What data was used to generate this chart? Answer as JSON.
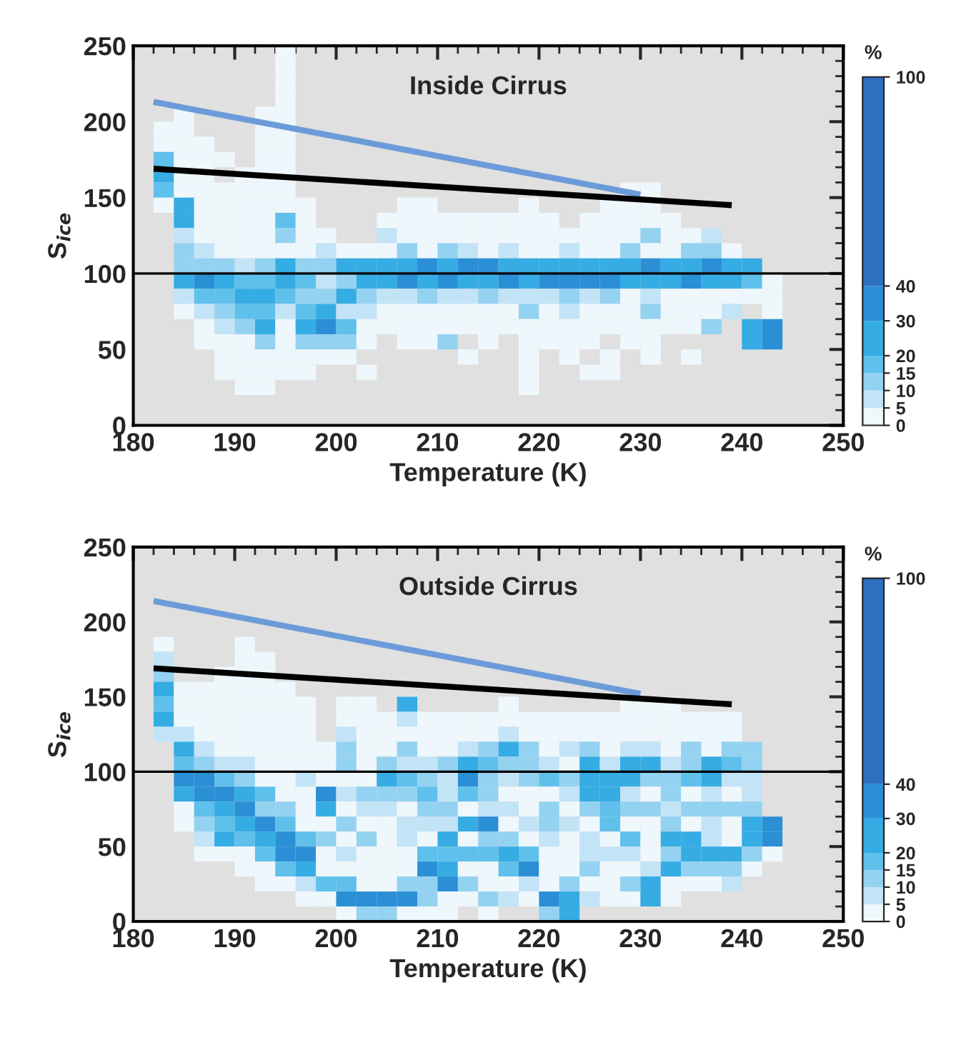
{
  "chart_data": [
    {
      "type": "heatmap",
      "title": "Inside Cirrus",
      "xlabel": "Temperature (K)",
      "ylabel": "S$_{ice}$",
      "clabel": "%",
      "xlim": [
        180,
        250
      ],
      "xticks": [
        180,
        190,
        200,
        210,
        220,
        230,
        240,
        250
      ],
      "ylim": [
        0,
        250
      ],
      "yticks": [
        0,
        50,
        100,
        150,
        200,
        250
      ],
      "clim": [
        0,
        100
      ],
      "cticks": [
        0,
        5,
        10,
        15,
        20,
        30,
        40,
        100
      ],
      "colors": [
        "#eef7fc",
        "#c3e4f7",
        "#94d2f1",
        "#5fc0ec",
        "#35ace3",
        "#2b8fd6",
        "#2e6fc0"
      ],
      "x": [
        183,
        185,
        187,
        189,
        191,
        193,
        195,
        197,
        199,
        201,
        203,
        205,
        207,
        209,
        211,
        213,
        215,
        217,
        219,
        221,
        223,
        225,
        227,
        229,
        231,
        233,
        235,
        237,
        239,
        241,
        243
      ],
      "cells": [
        [
          null,
          null,
          null,
          null,
          null,
          null,
          2,
          null,
          null,
          null,
          null,
          null,
          null,
          null,
          null,
          null,
          null,
          null,
          null,
          null,
          null,
          null,
          null,
          null,
          null,
          null,
          null,
          null,
          null,
          null,
          null
        ],
        [
          null,
          null,
          null,
          null,
          null,
          null,
          2,
          null,
          null,
          null,
          null,
          null,
          null,
          null,
          null,
          null,
          null,
          null,
          null,
          null,
          null,
          null,
          null,
          null,
          null,
          null,
          null,
          null,
          null,
          null,
          null
        ],
        [
          null,
          null,
          null,
          null,
          null,
          null,
          2,
          null,
          null,
          null,
          null,
          null,
          null,
          null,
          null,
          null,
          null,
          null,
          null,
          null,
          null,
          null,
          null,
          null,
          null,
          null,
          null,
          null,
          null,
          null,
          null
        ],
        [
          null,
          null,
          null,
          null,
          null,
          null,
          2,
          null,
          null,
          null,
          null,
          null,
          null,
          null,
          null,
          null,
          null,
          null,
          null,
          null,
          null,
          null,
          null,
          null,
          null,
          null,
          null,
          null,
          null,
          null,
          null
        ],
        [
          null,
          2,
          null,
          null,
          null,
          2,
          2,
          null,
          null,
          null,
          null,
          null,
          null,
          null,
          null,
          null,
          null,
          null,
          null,
          null,
          null,
          null,
          null,
          null,
          null,
          null,
          null,
          null,
          null,
          null,
          null
        ],
        [
          2,
          2,
          null,
          null,
          null,
          2,
          2,
          null,
          null,
          null,
          null,
          null,
          null,
          null,
          null,
          null,
          null,
          null,
          null,
          null,
          null,
          null,
          null,
          null,
          null,
          null,
          null,
          null,
          null,
          null,
          null
        ],
        [
          2,
          2,
          2,
          null,
          null,
          2,
          2,
          null,
          null,
          null,
          null,
          null,
          null,
          null,
          null,
          null,
          null,
          null,
          null,
          null,
          null,
          null,
          null,
          null,
          null,
          null,
          null,
          null,
          null,
          null,
          null
        ],
        [
          17,
          2,
          2,
          2,
          null,
          2,
          2,
          null,
          null,
          null,
          null,
          null,
          null,
          null,
          null,
          null,
          null,
          null,
          null,
          null,
          null,
          null,
          null,
          null,
          null,
          null,
          null,
          null,
          null,
          null,
          null
        ],
        [
          25,
          2,
          2,
          null,
          2,
          2,
          2,
          null,
          null,
          null,
          null,
          null,
          null,
          null,
          null,
          null,
          null,
          null,
          null,
          null,
          null,
          null,
          null,
          null,
          null,
          null,
          null,
          null,
          null,
          null,
          null
        ],
        [
          17,
          2,
          2,
          2,
          2,
          2,
          2,
          null,
          null,
          null,
          null,
          null,
          null,
          null,
          null,
          null,
          null,
          null,
          null,
          null,
          null,
          null,
          null,
          2,
          2,
          null,
          null,
          null,
          null,
          null,
          null
        ],
        [
          2,
          25,
          2,
          2,
          2,
          2,
          2,
          2,
          null,
          null,
          null,
          null,
          2,
          2,
          null,
          null,
          null,
          null,
          2,
          null,
          null,
          null,
          2,
          2,
          2,
          null,
          null,
          null,
          null,
          null,
          null
        ],
        [
          null,
          25,
          2,
          2,
          2,
          2,
          17,
          2,
          null,
          null,
          null,
          2,
          2,
          2,
          2,
          2,
          2,
          2,
          2,
          2,
          null,
          2,
          2,
          2,
          2,
          2,
          null,
          null,
          null,
          null,
          null
        ],
        [
          null,
          7,
          2,
          2,
          2,
          2,
          12,
          2,
          2,
          null,
          null,
          7,
          2,
          2,
          2,
          2,
          2,
          2,
          2,
          2,
          2,
          2,
          2,
          2,
          12,
          2,
          2,
          7,
          null,
          null,
          null
        ],
        [
          null,
          12,
          7,
          2,
          2,
          2,
          2,
          2,
          7,
          2,
          2,
          2,
          12,
          2,
          12,
          7,
          2,
          7,
          2,
          2,
          7,
          2,
          2,
          12,
          2,
          2,
          12,
          12,
          2,
          null,
          null
        ],
        [
          null,
          12,
          12,
          12,
          7,
          12,
          25,
          12,
          12,
          25,
          25,
          25,
          25,
          35,
          25,
          35,
          35,
          25,
          25,
          25,
          25,
          25,
          25,
          25,
          35,
          25,
          25,
          35,
          25,
          25,
          null
        ],
        [
          null,
          25,
          35,
          25,
          17,
          17,
          25,
          17,
          7,
          12,
          25,
          25,
          35,
          25,
          35,
          25,
          25,
          35,
          25,
          35,
          35,
          35,
          35,
          25,
          25,
          25,
          35,
          25,
          25,
          17,
          2
        ],
        [
          null,
          7,
          17,
          17,
          25,
          25,
          17,
          12,
          12,
          25,
          12,
          7,
          7,
          12,
          7,
          7,
          12,
          7,
          7,
          7,
          12,
          7,
          12,
          2,
          7,
          2,
          2,
          2,
          2,
          2,
          2
        ],
        [
          null,
          2,
          7,
          12,
          17,
          17,
          7,
          17,
          25,
          7,
          7,
          2,
          2,
          2,
          2,
          2,
          2,
          2,
          12,
          2,
          7,
          2,
          2,
          2,
          12,
          2,
          2,
          2,
          7,
          null,
          2
        ],
        [
          null,
          null,
          2,
          7,
          12,
          25,
          2,
          25,
          35,
          17,
          2,
          2,
          2,
          2,
          2,
          2,
          2,
          2,
          2,
          2,
          2,
          2,
          2,
          2,
          2,
          2,
          2,
          12,
          null,
          25,
          35
        ],
        [
          null,
          null,
          2,
          2,
          2,
          12,
          2,
          12,
          12,
          12,
          2,
          null,
          2,
          2,
          12,
          null,
          2,
          null,
          2,
          2,
          2,
          2,
          null,
          2,
          2,
          null,
          null,
          null,
          null,
          25,
          35
        ],
        [
          null,
          null,
          null,
          2,
          2,
          2,
          2,
          2,
          2,
          2,
          null,
          null,
          null,
          null,
          null,
          2,
          null,
          null,
          2,
          null,
          2,
          null,
          2,
          null,
          2,
          null,
          2,
          null,
          null,
          null,
          null
        ],
        [
          null,
          null,
          null,
          2,
          2,
          2,
          2,
          2,
          null,
          null,
          2,
          null,
          null,
          null,
          null,
          null,
          null,
          null,
          2,
          null,
          null,
          2,
          2,
          null,
          null,
          null,
          null,
          null,
          null,
          null,
          null
        ],
        [
          null,
          null,
          null,
          null,
          2,
          2,
          null,
          null,
          null,
          null,
          null,
          null,
          null,
          null,
          null,
          null,
          null,
          null,
          2,
          null,
          null,
          null,
          null,
          null,
          null,
          null,
          null,
          null,
          null,
          null,
          null
        ]
      ],
      "y": [
        245,
        235,
        225,
        215,
        205,
        195,
        185,
        175,
        165,
        155,
        145,
        135,
        125,
        115,
        105,
        95,
        85,
        75,
        65,
        55,
        45,
        35,
        25
      ],
      "series": [
        {
          "type": "line",
          "color": "#6b9bd8",
          "x": [
            182,
            230
          ],
          "values": [
            213,
            152
          ]
        },
        {
          "type": "line",
          "color": "#000000",
          "x": [
            182,
            239
          ],
          "values": [
            169,
            145
          ]
        }
      ],
      "ref_lines": [
        {
          "axis": "y",
          "value": 100,
          "color": "#000000"
        }
      ]
    },
    {
      "type": "heatmap",
      "title": "Outside Cirrus",
      "xlabel": "Temperature (K)",
      "ylabel": "S$_{ice}$",
      "clabel": "%",
      "clim": [
        0,
        100
      ],
      "cticks": [
        0,
        5,
        10,
        15,
        20,
        30,
        40,
        100
      ],
      "xlim": [
        180,
        250
      ],
      "xticks": [
        180,
        190,
        200,
        210,
        220,
        230,
        240,
        250
      ],
      "ylim": [
        0,
        250
      ],
      "yticks": [
        0,
        50,
        100,
        150,
        200,
        250
      ],
      "colors": [
        "#eef7fc",
        "#c3e4f7",
        "#94d2f1",
        "#5fc0ec",
        "#35ace3",
        "#2b8fd6",
        "#2e6fc0"
      ],
      "x": [
        183,
        185,
        187,
        189,
        191,
        193,
        195,
        197,
        199,
        201,
        203,
        205,
        207,
        209,
        211,
        213,
        215,
        217,
        219,
        221,
        223,
        225,
        227,
        229,
        231,
        233,
        235,
        237,
        239,
        241,
        243
      ],
      "y": [
        185,
        175,
        165,
        155,
        145,
        135,
        125,
        115,
        105,
        95,
        85,
        75,
        65,
        55,
        45,
        35,
        25,
        15,
        5
      ],
      "cells": [
        [
          2,
          null,
          null,
          null,
          2,
          null,
          null,
          null,
          null,
          null,
          null,
          null,
          null,
          null,
          null,
          null,
          null,
          null,
          null,
          null,
          null,
          null,
          null,
          null,
          null,
          null,
          null,
          null,
          null,
          null,
          null
        ],
        [
          7,
          null,
          null,
          null,
          2,
          2,
          null,
          null,
          null,
          null,
          null,
          null,
          null,
          null,
          null,
          null,
          null,
          null,
          null,
          null,
          null,
          null,
          null,
          null,
          null,
          null,
          null,
          null,
          null,
          null,
          null
        ],
        [
          12,
          null,
          null,
          2,
          2,
          2,
          null,
          null,
          null,
          null,
          null,
          null,
          null,
          null,
          null,
          null,
          null,
          null,
          null,
          null,
          null,
          null,
          null,
          null,
          null,
          null,
          null,
          null,
          null,
          null,
          null
        ],
        [
          25,
          2,
          2,
          2,
          2,
          2,
          2,
          null,
          null,
          null,
          null,
          null,
          null,
          null,
          null,
          null,
          null,
          null,
          null,
          null,
          null,
          null,
          null,
          null,
          null,
          null,
          null,
          null,
          null,
          null,
          null
        ],
        [
          17,
          2,
          2,
          2,
          2,
          2,
          2,
          2,
          null,
          2,
          2,
          null,
          25,
          null,
          null,
          null,
          null,
          2,
          null,
          null,
          null,
          null,
          null,
          2,
          2,
          2,
          null,
          null,
          null,
          null,
          null
        ],
        [
          25,
          2,
          2,
          2,
          2,
          2,
          2,
          2,
          null,
          2,
          2,
          2,
          7,
          2,
          2,
          2,
          2,
          2,
          2,
          2,
          2,
          2,
          2,
          2,
          2,
          2,
          2,
          2,
          2,
          null,
          null
        ],
        [
          7,
          7,
          2,
          2,
          2,
          2,
          2,
          2,
          null,
          7,
          2,
          2,
          2,
          2,
          2,
          2,
          2,
          7,
          2,
          2,
          2,
          2,
          2,
          2,
          2,
          2,
          2,
          2,
          2,
          null,
          null
        ],
        [
          null,
          25,
          7,
          2,
          2,
          2,
          2,
          2,
          2,
          12,
          2,
          2,
          12,
          2,
          2,
          7,
          12,
          25,
          12,
          2,
          7,
          12,
          2,
          7,
          7,
          2,
          12,
          2,
          12,
          12,
          null
        ],
        [
          null,
          17,
          12,
          7,
          7,
          2,
          2,
          2,
          2,
          12,
          2,
          12,
          7,
          7,
          12,
          25,
          17,
          12,
          12,
          7,
          2,
          25,
          7,
          25,
          25,
          7,
          12,
          25,
          17,
          12,
          null
        ],
        [
          null,
          35,
          35,
          17,
          12,
          2,
          2,
          7,
          2,
          2,
          2,
          25,
          17,
          12,
          7,
          35,
          12,
          7,
          12,
          17,
          12,
          25,
          25,
          25,
          12,
          12,
          17,
          25,
          7,
          7,
          null
        ],
        [
          null,
          25,
          35,
          35,
          25,
          17,
          2,
          2,
          35,
          7,
          12,
          12,
          12,
          17,
          7,
          17,
          12,
          2,
          2,
          2,
          7,
          25,
          25,
          7,
          2,
          12,
          2,
          7,
          2,
          7,
          null
        ],
        [
          null,
          2,
          17,
          25,
          35,
          12,
          12,
          2,
          25,
          2,
          7,
          7,
          2,
          12,
          12,
          2,
          7,
          7,
          2,
          12,
          2,
          12,
          17,
          12,
          12,
          7,
          12,
          12,
          12,
          12,
          null
        ],
        [
          null,
          2,
          12,
          17,
          25,
          35,
          17,
          2,
          2,
          12,
          2,
          2,
          7,
          7,
          7,
          25,
          35,
          2,
          7,
          12,
          7,
          2,
          17,
          2,
          2,
          12,
          2,
          7,
          2,
          25,
          35
        ],
        [
          null,
          null,
          7,
          25,
          17,
          25,
          35,
          17,
          12,
          2,
          12,
          2,
          7,
          2,
          25,
          2,
          12,
          12,
          2,
          7,
          2,
          7,
          2,
          17,
          2,
          25,
          25,
          7,
          2,
          25,
          35
        ],
        [
          null,
          null,
          2,
          2,
          2,
          17,
          35,
          35,
          2,
          7,
          2,
          2,
          2,
          17,
          17,
          17,
          17,
          25,
          17,
          2,
          2,
          7,
          7,
          7,
          2,
          12,
          25,
          25,
          25,
          12,
          2
        ],
        [
          null,
          null,
          null,
          null,
          2,
          2,
          17,
          25,
          2,
          2,
          2,
          2,
          2,
          35,
          25,
          2,
          2,
          17,
          35,
          2,
          2,
          12,
          2,
          2,
          7,
          25,
          12,
          12,
          12,
          2,
          null
        ],
        [
          null,
          null,
          null,
          null,
          null,
          2,
          2,
          7,
          17,
          17,
          2,
          2,
          12,
          12,
          35,
          12,
          2,
          2,
          7,
          2,
          12,
          2,
          2,
          12,
          25,
          2,
          2,
          2,
          7,
          null,
          null
        ],
        [
          null,
          null,
          null,
          null,
          null,
          null,
          null,
          2,
          2,
          35,
          35,
          35,
          35,
          12,
          2,
          2,
          12,
          7,
          2,
          35,
          25,
          7,
          2,
          2,
          25,
          2,
          null,
          null,
          null,
          null,
          null
        ],
        [
          null,
          null,
          null,
          null,
          null,
          null,
          null,
          null,
          null,
          2,
          12,
          12,
          2,
          2,
          2,
          null,
          2,
          null,
          null,
          12,
          25,
          null,
          null,
          null,
          null,
          null,
          null,
          null,
          null,
          null,
          null
        ]
      ],
      "series": [
        {
          "type": "line",
          "color": "#6b9bd8",
          "x": [
            182,
            230
          ],
          "values": [
            214,
            152
          ]
        },
        {
          "type": "line",
          "color": "#000000",
          "x": [
            182,
            239
          ],
          "values": [
            169,
            145
          ]
        }
      ],
      "ref_lines": [
        {
          "axis": "y",
          "value": 100,
          "color": "#000000"
        }
      ]
    }
  ]
}
